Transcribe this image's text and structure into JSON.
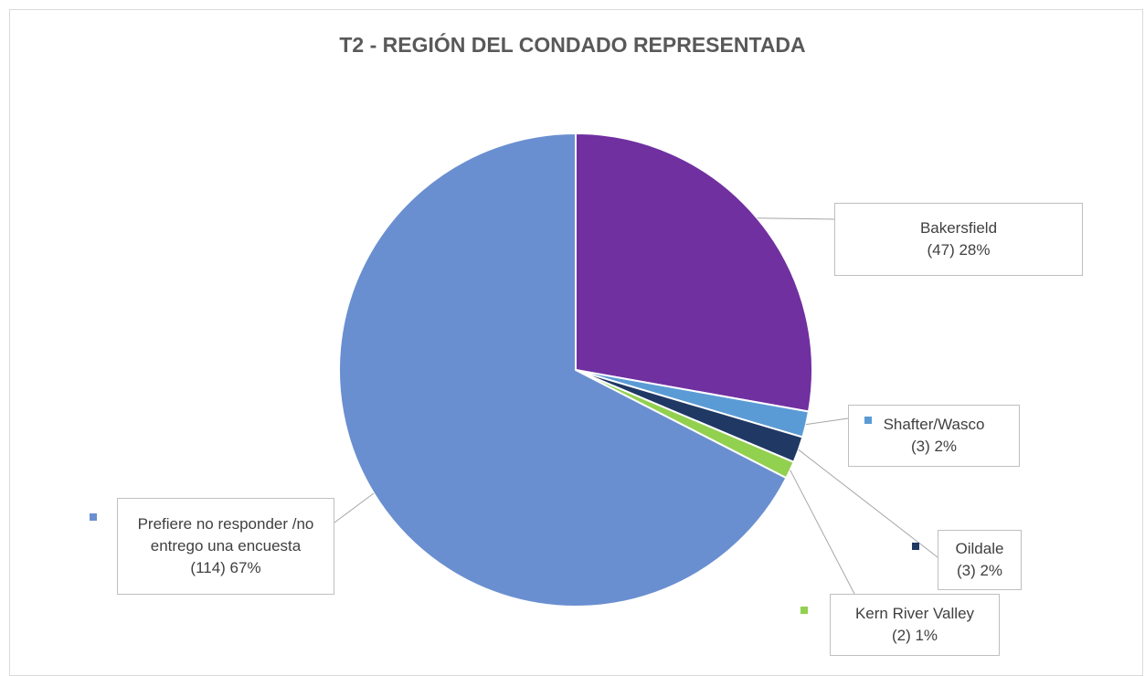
{
  "chart_data": {
    "type": "pie",
    "title": "T2 - REGIÓN DEL CONDADO REPRESENTADA",
    "categories": [
      "Bakersfield",
      "Shafter/Wasco",
      "Oildale",
      "Kern River Valley",
      "Prefiere no responder /no entrego una encuesta"
    ],
    "values": [
      47,
      3,
      3,
      2,
      114
    ],
    "value_labels": [
      "(47) 28%",
      "(3) 2%",
      "(3) 2%",
      "(2) 1%",
      "(114) 67%"
    ],
    "colors": [
      "#7030a0",
      "#5b9bd5",
      "#203864",
      "#92d050",
      "#6a8fd0"
    ]
  }
}
